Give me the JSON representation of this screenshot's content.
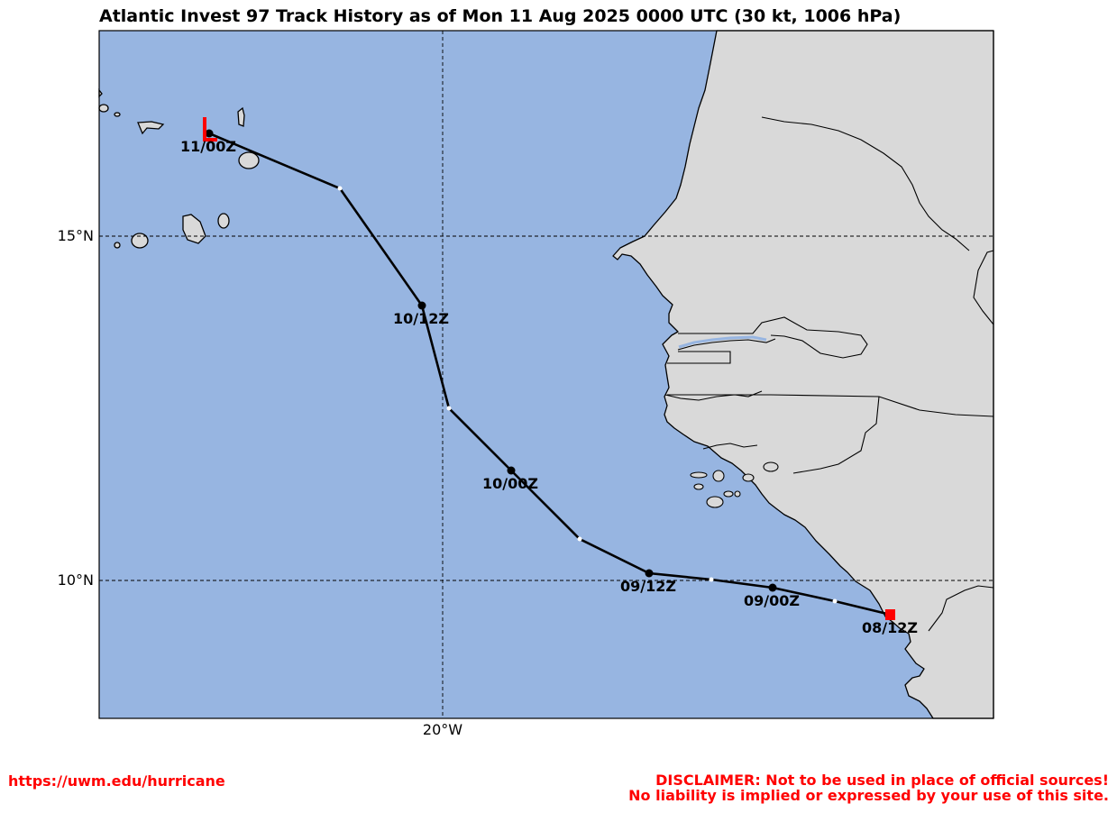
{
  "title": "Atlantic Invest 97 Track History as of Mon 11 Aug 2025 0000 UTC (30 kt, 1006 hPa)",
  "colors": {
    "ocean": "#97b5e1",
    "land": "#d9d9d9",
    "track": "#000000",
    "marker": "#ff0000"
  },
  "axes": {
    "lat_labels": [
      "15°N",
      "10°N"
    ],
    "lon_labels": [
      "20°W"
    ]
  },
  "track": {
    "labels": [
      "11/00Z",
      "10/12Z",
      "10/00Z",
      "09/12Z",
      "09/00Z",
      "08/12Z"
    ],
    "start_marker": "red-square",
    "current_marker": "red-L-symbol"
  },
  "footer": {
    "url": "https://uwm.edu/hurricane",
    "disclaimer_line1": "DISCLAIMER: Not to be used in place of official sources!",
    "disclaimer_line2": "No liability is implied or expressed by your use of this site."
  }
}
